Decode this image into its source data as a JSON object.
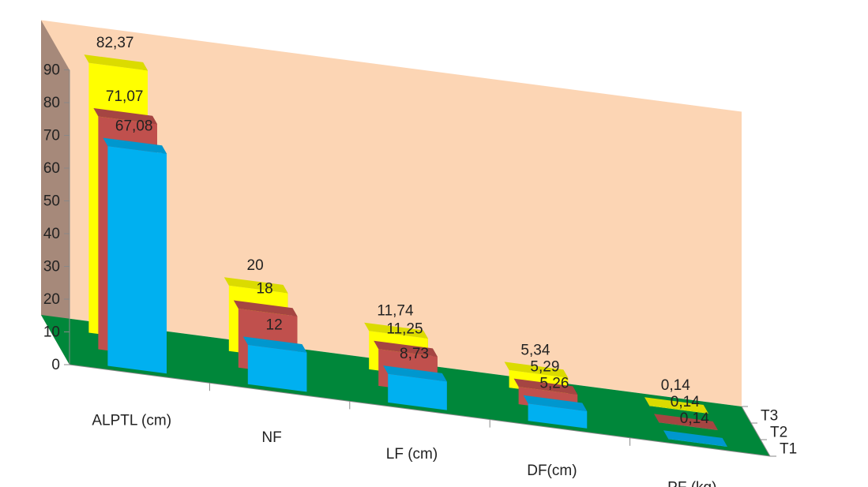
{
  "chart_data": {
    "type": "bar",
    "subtype": "3d-column",
    "title": "",
    "xlabel": "",
    "ylabel": "",
    "categories": [
      "ALPTL (cm)",
      "NF",
      "LF (cm)",
      "DF(cm)",
      "PF (kg)"
    ],
    "series": [
      {
        "name": "T1",
        "values": [
          67.08,
          12,
          8.73,
          5.26,
          0.14
        ],
        "labels": [
          "67,08",
          "12",
          "8,73",
          "5,26",
          "0,14"
        ],
        "color": "#00B0F0"
      },
      {
        "name": "T2",
        "values": [
          71.07,
          18,
          11.25,
          5.29,
          0.14
        ],
        "labels": [
          "71,07",
          "18",
          "11,25",
          "5,29",
          "0,14"
        ],
        "color": "#C0504D"
      },
      {
        "name": "T3",
        "values": [
          82.37,
          20,
          11.74,
          5.34,
          0.14
        ],
        "labels": [
          "82,37",
          "20",
          "11,74",
          "5,34",
          "0,14"
        ],
        "color": "#FFFF00"
      }
    ],
    "y_ticks": [
      "0",
      "10",
      "20",
      "30",
      "40",
      "50",
      "60",
      "70",
      "80",
      "90"
    ],
    "ylim": [
      0,
      90
    ],
    "grid": false,
    "legend": "none",
    "colors": {
      "floor": "#00873A",
      "back_wall": "#FCD5B4",
      "side_wall": "#A6897A"
    }
  }
}
